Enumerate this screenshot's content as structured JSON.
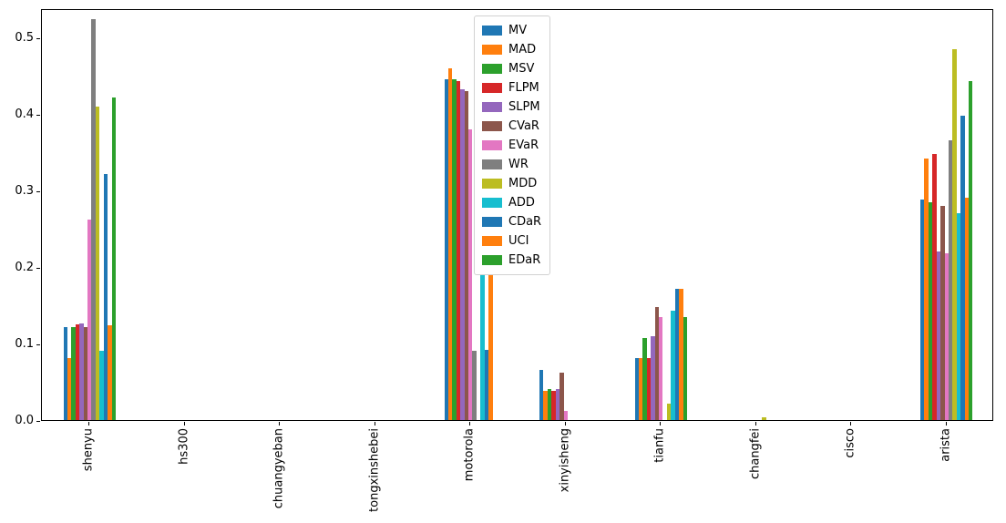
{
  "figure": {
    "background_color": "#ffffff",
    "axes_edge_color": "#000000",
    "legend_border_color": "#d2d2d2"
  },
  "chart_data": {
    "type": "bar",
    "title": "",
    "xlabel": "",
    "ylabel": "",
    "grid": false,
    "x_tick_rotation": 90,
    "ylim": [
      0,
      0.538
    ],
    "ytick_values": [
      0.0,
      0.1,
      0.2,
      0.3,
      0.4,
      0.5
    ],
    "ytick_labels": [
      "0.0",
      "0.1",
      "0.2",
      "0.3",
      "0.4",
      "0.5"
    ],
    "categories": [
      "shenyu",
      "hs300",
      "chuangyeban",
      "tongxinshebei",
      "motorola",
      "xinyisheng",
      "tianfu",
      "changfei",
      "cisco",
      "arista"
    ],
    "legend": {
      "position": "upper-center",
      "entries": [
        "MV",
        "MAD",
        "MSV",
        "FLPM",
        "SLPM",
        "CVaR",
        "EVaR",
        "WR",
        "MDD",
        "ADD",
        "CDaR",
        "UCI",
        "EDaR"
      ]
    },
    "series": [
      {
        "name": "MV",
        "color": "#1f77b4",
        "values": [
          0.122,
          0,
          0,
          0,
          0.445,
          0.065,
          0.081,
          0,
          0,
          0.288
        ]
      },
      {
        "name": "MAD",
        "color": "#ff7f0e",
        "values": [
          0.081,
          0,
          0,
          0,
          0.46,
          0.038,
          0.081,
          0,
          0,
          0.342
        ]
      },
      {
        "name": "MSV",
        "color": "#2ca02c",
        "values": [
          0.121,
          0,
          0,
          0,
          0.445,
          0.04,
          0.107,
          0,
          0,
          0.285
        ]
      },
      {
        "name": "FLPM",
        "color": "#d62728",
        "values": [
          0.125,
          0,
          0,
          0,
          0.443,
          0.038,
          0.081,
          0,
          0,
          0.348
        ]
      },
      {
        "name": "SLPM",
        "color": "#9467bd",
        "values": [
          0.126,
          0,
          0,
          0,
          0.432,
          0.04,
          0.11,
          0,
          0,
          0.22
        ]
      },
      {
        "name": "CVaR",
        "color": "#8c564b",
        "values": [
          0.122,
          0,
          0,
          0,
          0.43,
          0.062,
          0.148,
          0,
          0,
          0.28
        ]
      },
      {
        "name": "EVaR",
        "color": "#e377c2",
        "values": [
          0.262,
          0,
          0,
          0,
          0.38,
          0.012,
          0.135,
          0,
          0,
          0.218
        ]
      },
      {
        "name": "WR",
        "color": "#7f7f7f",
        "values": [
          0.524,
          0,
          0,
          0,
          0.09,
          0,
          0,
          0,
          0,
          0.365
        ]
      },
      {
        "name": "MDD",
        "color": "#bcbd22",
        "values": [
          0.409,
          0,
          0,
          0,
          0,
          0,
          0.022,
          0.003,
          0,
          0.485
        ]
      },
      {
        "name": "ADD",
        "color": "#17becf",
        "values": [
          0.091,
          0,
          0,
          0,
          0.5,
          0,
          0.143,
          0,
          0,
          0.27
        ]
      },
      {
        "name": "CDaR",
        "color": "#1f77b4",
        "values": [
          0.321,
          0,
          0,
          0,
          0.092,
          0,
          0.172,
          0,
          0,
          0.398
        ]
      },
      {
        "name": "UCI",
        "color": "#ff7f0e",
        "values": [
          0.124,
          0,
          0,
          0,
          0.41,
          0,
          0.172,
          0,
          0,
          0.29
        ]
      },
      {
        "name": "EDaR",
        "color": "#2ca02c",
        "values": [
          0.421,
          0,
          0,
          0,
          0,
          0,
          0.134,
          0,
          0,
          0.443
        ]
      }
    ]
  }
}
